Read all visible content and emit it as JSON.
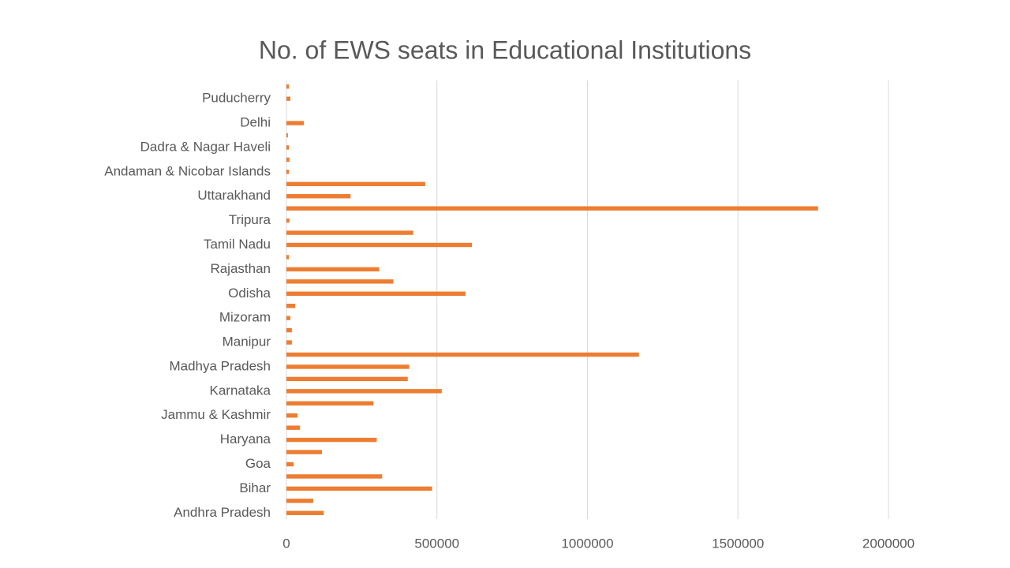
{
  "chart_data": {
    "type": "barh",
    "title": "No. of EWS seats in Educational Institutions",
    "categories": [
      "Andhra Pradesh",
      null,
      "Bihar",
      null,
      "Goa",
      null,
      "Haryana",
      null,
      "Jammu & Kashmir",
      null,
      "Karnataka",
      null,
      "Madhya Pradesh",
      null,
      "Manipur",
      null,
      "Mizoram",
      null,
      "Odisha",
      null,
      "Rajasthan",
      null,
      "Tamil Nadu",
      null,
      "Tripura",
      null,
      "Uttarakhand",
      null,
      "Andaman & Nicobar Islands",
      null,
      "Dadra & Nagar Haveli",
      null,
      "Delhi",
      null,
      "Puducherry",
      null
    ],
    "values": [
      124000,
      89000,
      484000,
      318000,
      24000,
      118000,
      300000,
      45000,
      37000,
      289000,
      516000,
      403000,
      408000,
      1171000,
      18000,
      18000,
      13000,
      29000,
      595000,
      355000,
      308000,
      8000,
      616000,
      421000,
      10000,
      1766000,
      213000,
      461000,
      8000,
      10000,
      8000,
      5000,
      58000,
      0,
      13000,
      8000
    ],
    "color": "#ed7d31",
    "xlim": [
      0,
      2000000
    ],
    "xticks": [
      0,
      500000,
      1000000,
      1500000,
      2000000
    ],
    "grid": true
  }
}
